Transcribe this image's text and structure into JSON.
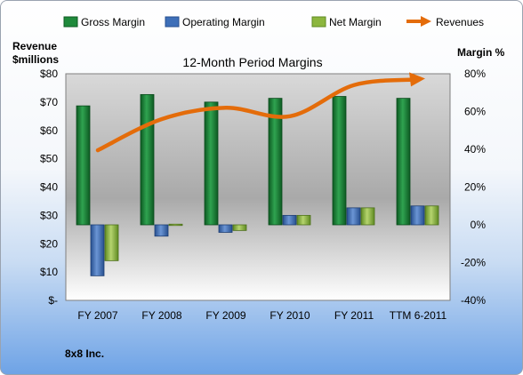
{
  "company_label": "8x8 Inc.",
  "chart_data": {
    "type": "bar",
    "title": "12-Month Period Margins",
    "categories": [
      "FY 2007",
      "FY 2008",
      "FY 2009",
      "FY 2010",
      "FY 2011",
      "TTM 6-2011"
    ],
    "ylabel_left": [
      "Revenue",
      "$millions"
    ],
    "ylabel_right": "Margin %",
    "y_left_ticks": [
      "$-",
      "$10",
      "$20",
      "$30",
      "$40",
      "$50",
      "$60",
      "$70",
      "$80"
    ],
    "y_left_range": [
      0,
      80
    ],
    "y_right_ticks": [
      "-40%",
      "-20%",
      "0%",
      "20%",
      "40%",
      "60%",
      "80%"
    ],
    "y_right_range": [
      -40,
      80
    ],
    "legend_position": "top",
    "series": [
      {
        "name": "Gross Margin",
        "type": "bar",
        "axis": "right",
        "color": "#1f8a3b",
        "values": [
          63,
          69,
          65,
          67,
          68,
          67
        ]
      },
      {
        "name": "Operating Margin",
        "type": "bar",
        "axis": "right",
        "color": "#3e6fb8",
        "values": [
          -27,
          -6,
          -4,
          5,
          9,
          10
        ]
      },
      {
        "name": "Net Margin",
        "type": "bar",
        "axis": "right",
        "color": "#8cb63e",
        "values": [
          -19,
          0,
          -3,
          5,
          9,
          10
        ]
      },
      {
        "name": "Revenues",
        "type": "line",
        "axis": "left",
        "color": "#e46c0a",
        "values": [
          53,
          64,
          68,
          65,
          76,
          78
        ]
      }
    ]
  }
}
